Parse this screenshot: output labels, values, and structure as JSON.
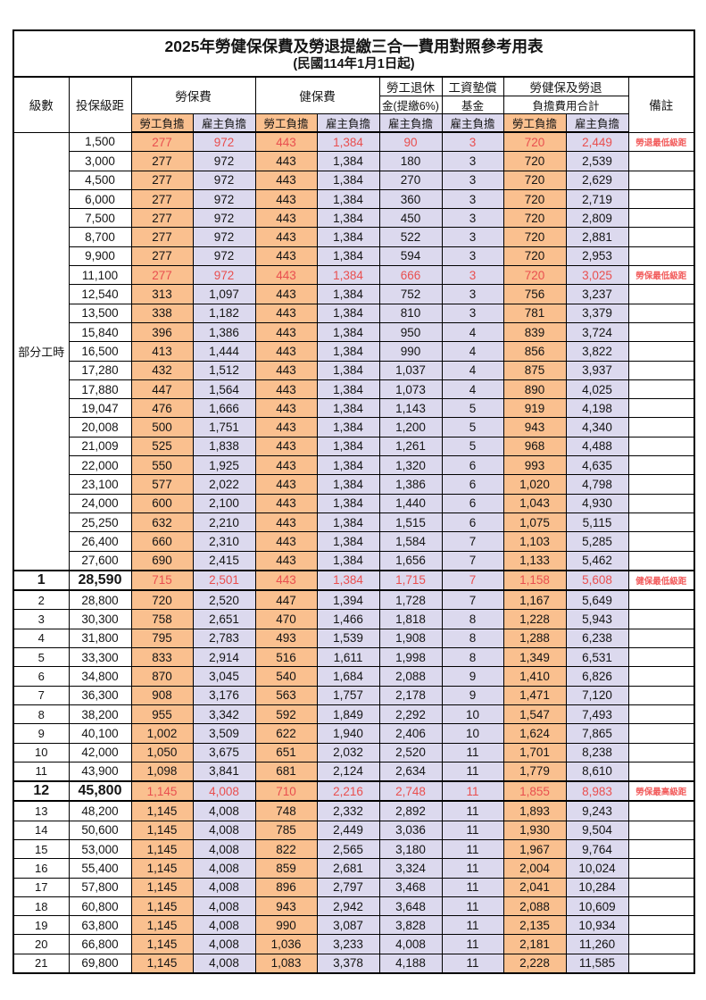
{
  "title": "2025年勞健保保費及勞退提繳三合一費用對照參考用表",
  "subtitle": "(民國114年1月1日起)",
  "header": {
    "level": "級數",
    "bracket": "投保級距",
    "labor_ins": "勞保費",
    "health_ins": "健保費",
    "pension_line1": "勞工退休",
    "pension_line2": "金(提繳6%)",
    "wage_fund_line1": "工資墊償",
    "wage_fund_line2": "基金",
    "total_line1": "勞健保及勞退",
    "total_line2": "負擔費用合計",
    "remark": "備註",
    "employee": "勞工負擔",
    "employer": "雇主負擔"
  },
  "part_time_label": "部分工時",
  "colors": {
    "employee_fill": "#FAC08F",
    "employer_fill": "#DCD9EE",
    "highlight_value_red": "#E94F4F",
    "remark_red": "#F25B5B",
    "grid": "#000000"
  },
  "remarks_legend": [
    "勞退最低級距",
    "勞保最低級距",
    "健保最低級距",
    "勞保最高級距"
  ],
  "rows": [
    {
      "level": null,
      "bracket": "1,500",
      "v": [
        "277",
        "972",
        "443",
        "1,384",
        "90",
        "3",
        "720",
        "2,449"
      ],
      "remark": "勞退最低級距",
      "red": true,
      "boxed": false
    },
    {
      "level": null,
      "bracket": "3,000",
      "v": [
        "277",
        "972",
        "443",
        "1,384",
        "180",
        "3",
        "720",
        "2,539"
      ],
      "remark": "",
      "red": false,
      "boxed": false
    },
    {
      "level": null,
      "bracket": "4,500",
      "v": [
        "277",
        "972",
        "443",
        "1,384",
        "270",
        "3",
        "720",
        "2,629"
      ],
      "remark": "",
      "red": false,
      "boxed": false
    },
    {
      "level": null,
      "bracket": "6,000",
      "v": [
        "277",
        "972",
        "443",
        "1,384",
        "360",
        "3",
        "720",
        "2,719"
      ],
      "remark": "",
      "red": false,
      "boxed": false
    },
    {
      "level": null,
      "bracket": "7,500",
      "v": [
        "277",
        "972",
        "443",
        "1,384",
        "450",
        "3",
        "720",
        "2,809"
      ],
      "remark": "",
      "red": false,
      "boxed": false
    },
    {
      "level": null,
      "bracket": "8,700",
      "v": [
        "277",
        "972",
        "443",
        "1,384",
        "522",
        "3",
        "720",
        "2,881"
      ],
      "remark": "",
      "red": false,
      "boxed": false
    },
    {
      "level": null,
      "bracket": "9,900",
      "v": [
        "277",
        "972",
        "443",
        "1,384",
        "594",
        "3",
        "720",
        "2,953"
      ],
      "remark": "",
      "red": false,
      "boxed": false
    },
    {
      "level": null,
      "bracket": "11,100",
      "v": [
        "277",
        "972",
        "443",
        "1,384",
        "666",
        "3",
        "720",
        "3,025"
      ],
      "remark": "勞保最低級距",
      "red": true,
      "boxed": false
    },
    {
      "level": null,
      "bracket": "12,540",
      "v": [
        "313",
        "1,097",
        "443",
        "1,384",
        "752",
        "3",
        "756",
        "3,237"
      ],
      "remark": "",
      "red": false,
      "boxed": false
    },
    {
      "level": null,
      "bracket": "13,500",
      "v": [
        "338",
        "1,182",
        "443",
        "1,384",
        "810",
        "3",
        "781",
        "3,379"
      ],
      "remark": "",
      "red": false,
      "boxed": false
    },
    {
      "level": null,
      "bracket": "15,840",
      "v": [
        "396",
        "1,386",
        "443",
        "1,384",
        "950",
        "4",
        "839",
        "3,724"
      ],
      "remark": "",
      "red": false,
      "boxed": false
    },
    {
      "level": null,
      "bracket": "16,500",
      "v": [
        "413",
        "1,444",
        "443",
        "1,384",
        "990",
        "4",
        "856",
        "3,822"
      ],
      "remark": "",
      "red": false,
      "boxed": false
    },
    {
      "level": null,
      "bracket": "17,280",
      "v": [
        "432",
        "1,512",
        "443",
        "1,384",
        "1,037",
        "4",
        "875",
        "3,937"
      ],
      "remark": "",
      "red": false,
      "boxed": false
    },
    {
      "level": null,
      "bracket": "17,880",
      "v": [
        "447",
        "1,564",
        "443",
        "1,384",
        "1,073",
        "4",
        "890",
        "4,025"
      ],
      "remark": "",
      "red": false,
      "boxed": false
    },
    {
      "level": null,
      "bracket": "19,047",
      "v": [
        "476",
        "1,666",
        "443",
        "1,384",
        "1,143",
        "5",
        "919",
        "4,198"
      ],
      "remark": "",
      "red": false,
      "boxed": false
    },
    {
      "level": null,
      "bracket": "20,008",
      "v": [
        "500",
        "1,751",
        "443",
        "1,384",
        "1,200",
        "5",
        "943",
        "4,340"
      ],
      "remark": "",
      "red": false,
      "boxed": false
    },
    {
      "level": null,
      "bracket": "21,009",
      "v": [
        "525",
        "1,838",
        "443",
        "1,384",
        "1,261",
        "5",
        "968",
        "4,488"
      ],
      "remark": "",
      "red": false,
      "boxed": false
    },
    {
      "level": null,
      "bracket": "22,000",
      "v": [
        "550",
        "1,925",
        "443",
        "1,384",
        "1,320",
        "6",
        "993",
        "4,635"
      ],
      "remark": "",
      "red": false,
      "boxed": false
    },
    {
      "level": null,
      "bracket": "23,100",
      "v": [
        "577",
        "2,022",
        "443",
        "1,384",
        "1,386",
        "6",
        "1,020",
        "4,798"
      ],
      "remark": "",
      "red": false,
      "boxed": false
    },
    {
      "level": null,
      "bracket": "24,000",
      "v": [
        "600",
        "2,100",
        "443",
        "1,384",
        "1,440",
        "6",
        "1,043",
        "4,930"
      ],
      "remark": "",
      "red": false,
      "boxed": false
    },
    {
      "level": null,
      "bracket": "25,250",
      "v": [
        "632",
        "2,210",
        "443",
        "1,384",
        "1,515",
        "6",
        "1,075",
        "5,115"
      ],
      "remark": "",
      "red": false,
      "boxed": false
    },
    {
      "level": null,
      "bracket": "26,400",
      "v": [
        "660",
        "2,310",
        "443",
        "1,384",
        "1,584",
        "7",
        "1,103",
        "5,285"
      ],
      "remark": "",
      "red": false,
      "boxed": false
    },
    {
      "level": null,
      "bracket": "27,600",
      "v": [
        "690",
        "2,415",
        "443",
        "1,384",
        "1,656",
        "7",
        "1,133",
        "5,462"
      ],
      "remark": "",
      "red": false,
      "boxed": false
    },
    {
      "level": "1",
      "bracket": "28,590",
      "v": [
        "715",
        "2,501",
        "443",
        "1,384",
        "1,715",
        "7",
        "1,158",
        "5,608"
      ],
      "remark": "健保最低級距",
      "red": true,
      "boxed": true
    },
    {
      "level": "2",
      "bracket": "28,800",
      "v": [
        "720",
        "2,520",
        "447",
        "1,394",
        "1,728",
        "7",
        "1,167",
        "5,649"
      ],
      "remark": "",
      "red": false,
      "boxed": false
    },
    {
      "level": "3",
      "bracket": "30,300",
      "v": [
        "758",
        "2,651",
        "470",
        "1,466",
        "1,818",
        "8",
        "1,228",
        "5,943"
      ],
      "remark": "",
      "red": false,
      "boxed": false
    },
    {
      "level": "4",
      "bracket": "31,800",
      "v": [
        "795",
        "2,783",
        "493",
        "1,539",
        "1,908",
        "8",
        "1,288",
        "6,238"
      ],
      "remark": "",
      "red": false,
      "boxed": false
    },
    {
      "level": "5",
      "bracket": "33,300",
      "v": [
        "833",
        "2,914",
        "516",
        "1,611",
        "1,998",
        "8",
        "1,349",
        "6,531"
      ],
      "remark": "",
      "red": false,
      "boxed": false
    },
    {
      "level": "6",
      "bracket": "34,800",
      "v": [
        "870",
        "3,045",
        "540",
        "1,684",
        "2,088",
        "9",
        "1,410",
        "6,826"
      ],
      "remark": "",
      "red": false,
      "boxed": false
    },
    {
      "level": "7",
      "bracket": "36,300",
      "v": [
        "908",
        "3,176",
        "563",
        "1,757",
        "2,178",
        "9",
        "1,471",
        "7,120"
      ],
      "remark": "",
      "red": false,
      "boxed": false
    },
    {
      "level": "8",
      "bracket": "38,200",
      "v": [
        "955",
        "3,342",
        "592",
        "1,849",
        "2,292",
        "10",
        "1,547",
        "7,493"
      ],
      "remark": "",
      "red": false,
      "boxed": false
    },
    {
      "level": "9",
      "bracket": "40,100",
      "v": [
        "1,002",
        "3,509",
        "622",
        "1,940",
        "2,406",
        "10",
        "1,624",
        "7,865"
      ],
      "remark": "",
      "red": false,
      "boxed": false
    },
    {
      "level": "10",
      "bracket": "42,000",
      "v": [
        "1,050",
        "3,675",
        "651",
        "2,032",
        "2,520",
        "11",
        "1,701",
        "8,238"
      ],
      "remark": "",
      "red": false,
      "boxed": false
    },
    {
      "level": "11",
      "bracket": "43,900",
      "v": [
        "1,098",
        "3,841",
        "681",
        "2,124",
        "2,634",
        "11",
        "1,779",
        "8,610"
      ],
      "remark": "",
      "red": false,
      "boxed": false
    },
    {
      "level": "12",
      "bracket": "45,800",
      "v": [
        "1,145",
        "4,008",
        "710",
        "2,216",
        "2,748",
        "11",
        "1,855",
        "8,983"
      ],
      "remark": "勞保最高級距",
      "red": true,
      "boxed": true
    },
    {
      "level": "13",
      "bracket": "48,200",
      "v": [
        "1,145",
        "4,008",
        "748",
        "2,332",
        "2,892",
        "11",
        "1,893",
        "9,243"
      ],
      "remark": "",
      "red": false,
      "boxed": false
    },
    {
      "level": "14",
      "bracket": "50,600",
      "v": [
        "1,145",
        "4,008",
        "785",
        "2,449",
        "3,036",
        "11",
        "1,930",
        "9,504"
      ],
      "remark": "",
      "red": false,
      "boxed": false
    },
    {
      "level": "15",
      "bracket": "53,000",
      "v": [
        "1,145",
        "4,008",
        "822",
        "2,565",
        "3,180",
        "11",
        "1,967",
        "9,764"
      ],
      "remark": "",
      "red": false,
      "boxed": false
    },
    {
      "level": "16",
      "bracket": "55,400",
      "v": [
        "1,145",
        "4,008",
        "859",
        "2,681",
        "3,324",
        "11",
        "2,004",
        "10,024"
      ],
      "remark": "",
      "red": false,
      "boxed": false
    },
    {
      "level": "17",
      "bracket": "57,800",
      "v": [
        "1,145",
        "4,008",
        "896",
        "2,797",
        "3,468",
        "11",
        "2,041",
        "10,284"
      ],
      "remark": "",
      "red": false,
      "boxed": false
    },
    {
      "level": "18",
      "bracket": "60,800",
      "v": [
        "1,145",
        "4,008",
        "943",
        "2,942",
        "3,648",
        "11",
        "2,088",
        "10,609"
      ],
      "remark": "",
      "red": false,
      "boxed": false
    },
    {
      "level": "19",
      "bracket": "63,800",
      "v": [
        "1,145",
        "4,008",
        "990",
        "3,087",
        "3,828",
        "11",
        "2,135",
        "10,934"
      ],
      "remark": "",
      "red": false,
      "boxed": false
    },
    {
      "level": "20",
      "bracket": "66,800",
      "v": [
        "1,145",
        "4,008",
        "1,036",
        "3,233",
        "4,008",
        "11",
        "2,181",
        "11,260"
      ],
      "remark": "",
      "red": false,
      "boxed": false
    },
    {
      "level": "21",
      "bracket": "69,800",
      "v": [
        "1,145",
        "4,008",
        "1,083",
        "3,378",
        "4,188",
        "11",
        "2,228",
        "11,585"
      ],
      "remark": "",
      "red": false,
      "boxed": false
    }
  ]
}
